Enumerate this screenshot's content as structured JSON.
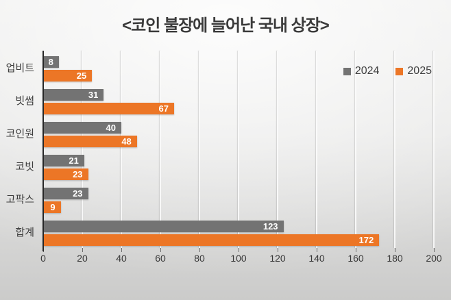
{
  "title": "<코인 불장에 늘어난 국내 상장>",
  "legend": {
    "items": [
      {
        "label": "2024",
        "color": "#737373"
      },
      {
        "label": "2025",
        "color": "#EC7626"
      }
    ],
    "position": "top-right"
  },
  "chart_data": {
    "type": "bar",
    "orientation": "horizontal",
    "title": "<코인 불장에 늘어난 국내 상장>",
    "categories": [
      "업비트",
      "빗썸",
      "코인원",
      "코빗",
      "고팍스",
      "합계"
    ],
    "series": [
      {
        "name": "2024",
        "color": "#737373",
        "values": [
          8,
          31,
          40,
          21,
          23,
          123
        ]
      },
      {
        "name": "2025",
        "color": "#EC7626",
        "values": [
          25,
          67,
          48,
          23,
          9,
          172
        ]
      }
    ],
    "xlim": [
      0,
      200
    ],
    "x_ticks": [
      0,
      20,
      40,
      60,
      80,
      100,
      120,
      140,
      160,
      180,
      200
    ],
    "grid": true,
    "data_labels": "inside-end",
    "legend_position": "top-right"
  },
  "colors": {
    "background_top": "#efefee",
    "background_bottom": "#cbcbca",
    "gridline": "#fafafa",
    "axis_line": "#262626",
    "title_text": "#3a3a3a",
    "tick_text": "#373737",
    "bar_label_text": "#ffffff"
  }
}
